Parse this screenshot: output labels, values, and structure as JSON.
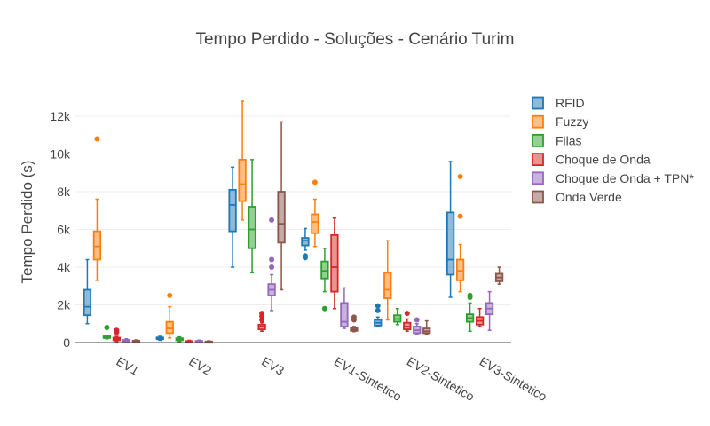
{
  "chart_data": {
    "type": "box",
    "title": "Tempo Perdido - Soluções - Cenário Turim",
    "xlabel": "",
    "ylabel": "Tempo Perdido (s)",
    "ylim": [
      0,
      13000
    ],
    "y_ticks": [
      0,
      2000,
      4000,
      6000,
      8000,
      10000,
      12000
    ],
    "y_tick_labels": [
      "0",
      "2k",
      "4k",
      "6k",
      "8k",
      "10k",
      "12k"
    ],
    "categories": [
      "EV1",
      "EV2",
      "EV3",
      "EV1-Sintético",
      "EV2-Sintético",
      "EV3-Sintético"
    ],
    "grid": true,
    "legend_position": "top-right",
    "series": [
      {
        "name": "RFID",
        "color": "#1f77b4",
        "boxes": [
          {
            "min": 1000,
            "q1": 1450,
            "median": 1900,
            "q3": 2800,
            "max": 4400,
            "outliers": []
          },
          {
            "min": 120,
            "q1": 180,
            "median": 230,
            "q3": 270,
            "max": 330,
            "outliers": []
          },
          {
            "min": 4000,
            "q1": 5900,
            "median": 7300,
            "q3": 8100,
            "max": 9300,
            "outliers": []
          },
          {
            "min": 4900,
            "q1": 5150,
            "median": 5400,
            "q3": 5550,
            "max": 6050,
            "outliers": [
              4500,
              4600
            ]
          },
          {
            "min": 850,
            "q1": 900,
            "median": 1050,
            "q3": 1200,
            "max": 1350,
            "outliers": [
              1700,
              1950
            ]
          },
          {
            "min": 2400,
            "q1": 3600,
            "median": 4400,
            "q3": 6900,
            "max": 9600,
            "outliers": []
          }
        ]
      },
      {
        "name": "Fuzzy",
        "color": "#ff7f0e",
        "boxes": [
          {
            "min": 3300,
            "q1": 4400,
            "median": 5100,
            "q3": 5900,
            "max": 7600,
            "outliers": [
              10800
            ]
          },
          {
            "min": 250,
            "q1": 500,
            "median": 750,
            "q3": 1100,
            "max": 1900,
            "outliers": [
              2500
            ]
          },
          {
            "min": 6500,
            "q1": 7500,
            "median": 8400,
            "q3": 9700,
            "max": 12800,
            "outliers": []
          },
          {
            "min": 5100,
            "q1": 5800,
            "median": 6400,
            "q3": 6800,
            "max": 7600,
            "outliers": [
              8500
            ]
          },
          {
            "min": 1200,
            "q1": 2350,
            "median": 2800,
            "q3": 3700,
            "max": 5400,
            "outliers": []
          },
          {
            "min": 2700,
            "q1": 3300,
            "median": 3800,
            "q3": 4400,
            "max": 5200,
            "outliers": [
              6700,
              8800
            ]
          }
        ]
      },
      {
        "name": "Filas",
        "color": "#2ca02c",
        "boxes": [
          {
            "min": 200,
            "q1": 240,
            "median": 280,
            "q3": 330,
            "max": 380,
            "outliers": [
              800
            ]
          },
          {
            "min": 60,
            "q1": 120,
            "median": 180,
            "q3": 230,
            "max": 300,
            "outliers": []
          },
          {
            "min": 3700,
            "q1": 5000,
            "median": 6000,
            "q3": 7200,
            "max": 9700,
            "outliers": []
          },
          {
            "min": 2700,
            "q1": 3400,
            "median": 3800,
            "q3": 4300,
            "max": 5000,
            "outliers": [
              1800
            ]
          },
          {
            "min": 950,
            "q1": 1100,
            "median": 1250,
            "q3": 1450,
            "max": 1800,
            "outliers": []
          },
          {
            "min": 600,
            "q1": 1100,
            "median": 1300,
            "q3": 1500,
            "max": 2100,
            "outliers": [
              2400,
              2500
            ]
          }
        ]
      },
      {
        "name": "Choque de Onda",
        "color": "#d62728",
        "boxes": [
          {
            "min": 50,
            "q1": 120,
            "median": 200,
            "q3": 260,
            "max": 330,
            "outliers": [
              550,
              650
            ]
          },
          {
            "min": 10,
            "q1": 30,
            "median": 50,
            "q3": 80,
            "max": 120,
            "outliers": []
          },
          {
            "min": 600,
            "q1": 700,
            "median": 850,
            "q3": 950,
            "max": 1050,
            "outliers": [
              1200,
              1400,
              1550
            ]
          },
          {
            "min": 1800,
            "q1": 2700,
            "median": 4000,
            "q3": 5700,
            "max": 6600,
            "outliers": []
          },
          {
            "min": 600,
            "q1": 700,
            "median": 850,
            "q3": 1050,
            "max": 1250,
            "outliers": [
              1550
            ]
          },
          {
            "min": 850,
            "q1": 950,
            "median": 1150,
            "q3": 1350,
            "max": 1800,
            "outliers": []
          }
        ]
      },
      {
        "name": "Choque de Onda + TPN*",
        "color": "#9467bd",
        "boxes": [
          {
            "min": 30,
            "q1": 60,
            "median": 100,
            "q3": 140,
            "max": 200,
            "outliers": []
          },
          {
            "min": 10,
            "q1": 30,
            "median": 60,
            "q3": 90,
            "max": 130,
            "outliers": []
          },
          {
            "min": 1700,
            "q1": 2500,
            "median": 2800,
            "q3": 3100,
            "max": 3600,
            "outliers": [
              4000,
              4400,
              6500
            ]
          },
          {
            "min": 750,
            "q1": 850,
            "median": 1100,
            "q3": 2100,
            "max": 2900,
            "outliers": []
          },
          {
            "min": 450,
            "q1": 500,
            "median": 650,
            "q3": 850,
            "max": 1000,
            "outliers": [
              1200
            ]
          },
          {
            "min": 650,
            "q1": 1500,
            "median": 1800,
            "q3": 2100,
            "max": 2700,
            "outliers": []
          }
        ]
      },
      {
        "name": "Onda Verde",
        "color": "#8c564b",
        "boxes": [
          {
            "min": 20,
            "q1": 40,
            "median": 70,
            "q3": 100,
            "max": 140,
            "outliers": []
          },
          {
            "min": 5,
            "q1": 20,
            "median": 40,
            "q3": 60,
            "max": 90,
            "outliers": []
          },
          {
            "min": 2800,
            "q1": 5300,
            "median": 6300,
            "q3": 8000,
            "max": 11700,
            "outliers": []
          },
          {
            "min": 580,
            "q1": 620,
            "median": 700,
            "q3": 780,
            "max": 850,
            "outliers": [
              1200,
              1350
            ]
          },
          {
            "min": 450,
            "q1": 500,
            "median": 600,
            "q3": 750,
            "max": 1150,
            "outliers": []
          },
          {
            "min": 3100,
            "q1": 3250,
            "median": 3450,
            "q3": 3650,
            "max": 4000,
            "outliers": []
          }
        ]
      }
    ]
  }
}
